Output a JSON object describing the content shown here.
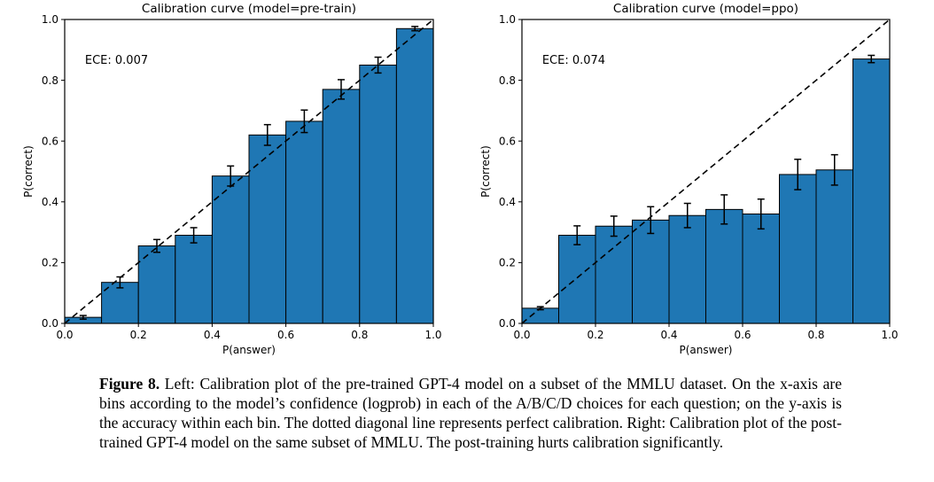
{
  "page": {
    "background": "#ffffff"
  },
  "chart_data": [
    {
      "type": "bar",
      "title": "Calibration curve (model=pre-train)",
      "annotation": "ECE: 0.007",
      "xlabel": "P(answer)",
      "ylabel": "P(correct)",
      "xlim": [
        0.0,
        1.0
      ],
      "ylim": [
        0.0,
        1.0
      ],
      "xticks": [
        "0.0",
        "0.2",
        "0.4",
        "0.6",
        "0.8",
        "1.0"
      ],
      "yticks": [
        "0.0",
        "0.2",
        "0.4",
        "0.6",
        "0.8",
        "1.0"
      ],
      "bin_width": 0.1,
      "bin_starts": [
        0.0,
        0.1,
        0.2,
        0.3,
        0.4,
        0.5,
        0.6,
        0.7,
        0.8,
        0.9
      ],
      "values": [
        0.02,
        0.135,
        0.255,
        0.29,
        0.485,
        0.62,
        0.665,
        0.77,
        0.85,
        0.97
      ],
      "errors": [
        0.006,
        0.018,
        0.021,
        0.025,
        0.033,
        0.034,
        0.037,
        0.032,
        0.026,
        0.007
      ],
      "bar_color": "#1f77b4",
      "bar_edge_color": "#000000",
      "diagonal_line": "dashed black line from (0,0) to (1,1) representing perfect calibration",
      "grid": false,
      "legend": null
    },
    {
      "type": "bar",
      "title": "Calibration curve (model=ppo)",
      "annotation": "ECE: 0.074",
      "xlabel": "P(answer)",
      "ylabel": "P(correct)",
      "xlim": [
        0.0,
        1.0
      ],
      "ylim": [
        0.0,
        1.0
      ],
      "xticks": [
        "0.0",
        "0.2",
        "0.4",
        "0.6",
        "0.8",
        "1.0"
      ],
      "yticks": [
        "0.0",
        "0.2",
        "0.4",
        "0.6",
        "0.8",
        "1.0"
      ],
      "bin_width": 0.1,
      "bin_starts": [
        0.0,
        0.1,
        0.2,
        0.3,
        0.4,
        0.5,
        0.6,
        0.7,
        0.8,
        0.9
      ],
      "values": [
        0.05,
        0.29,
        0.32,
        0.34,
        0.355,
        0.375,
        0.36,
        0.49,
        0.505,
        0.87
      ],
      "errors": [
        0.005,
        0.031,
        0.033,
        0.044,
        0.04,
        0.048,
        0.049,
        0.05,
        0.05,
        0.012
      ],
      "bar_color": "#1f77b4",
      "bar_edge_color": "#000000",
      "diagonal_line": "dashed black line from (0,0) to (1,1) representing perfect calibration",
      "grid": false,
      "legend": null
    }
  ],
  "caption": {
    "label": "Figure 8.",
    "text": " Left: Calibration plot of the pre-trained GPT-4 model on a subset of the MMLU dataset. On the x-axis are bins according to the model’s confidence (logprob) in each of the A/B/C/D choices for each question; on the y-axis is the accuracy within each bin. The dotted diagonal line represents perfect calibration. Right: Calibration plot of the post-trained GPT-4 model on the same subset of MMLU. The post-training hurts calibration significantly."
  }
}
